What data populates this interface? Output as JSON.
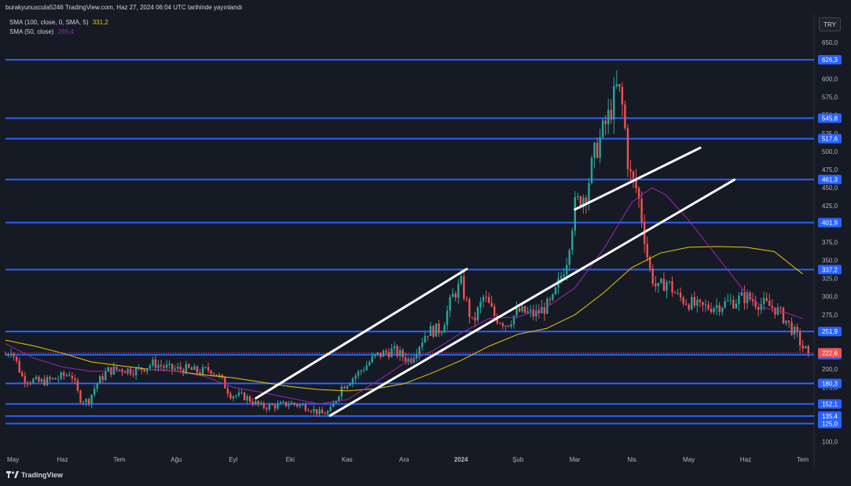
{
  "header": {
    "published_by": "burakyunuscula5246 TradingView.com, Haz 27, 2024 06:04 UTC tarihinde yayınlandı",
    "indicators": [
      {
        "label": "SMA (100, close, 0, SMA, 5)",
        "value": "331,2",
        "color": "#f0c800"
      },
      {
        "label": "SMA (50, close)",
        "value": "269,4",
        "color": "#9c27b0"
      }
    ],
    "currency": "TRY"
  },
  "footer": {
    "brand": "TradingView"
  },
  "chart_data": {
    "type": "candlestick",
    "y_axis": {
      "ticks": [
        {
          "v": 650,
          "label": "650,0"
        },
        {
          "v": 625,
          "label": "625,0"
        },
        {
          "v": 600,
          "label": "600,0"
        },
        {
          "v": 575,
          "label": "575,0"
        },
        {
          "v": 550,
          "label": "550,0"
        },
        {
          "v": 525,
          "label": "525,0"
        },
        {
          "v": 500,
          "label": "500,0"
        },
        {
          "v": 475,
          "label": "475,0"
        },
        {
          "v": 450,
          "label": "450,0"
        },
        {
          "v": 425,
          "label": "425,0"
        },
        {
          "v": 400,
          "label": "400,0"
        },
        {
          "v": 375,
          "label": "375,0"
        },
        {
          "v": 350,
          "label": "350,0"
        },
        {
          "v": 325,
          "label": "325,0"
        },
        {
          "v": 300,
          "label": "300,0"
        },
        {
          "v": 275,
          "label": "275,0"
        },
        {
          "v": 250,
          "label": "250,0"
        },
        {
          "v": 225,
          "label": "225,0"
        },
        {
          "v": 200,
          "label": "200,0"
        },
        {
          "v": 175,
          "label": "175,0"
        },
        {
          "v": 150,
          "label": "150,0"
        },
        {
          "v": 125,
          "label": "125,0"
        },
        {
          "v": 100,
          "label": "100,0"
        }
      ],
      "range": [
        92,
        660
      ]
    },
    "x_axis": {
      "labels": [
        "May",
        "Haz",
        "Tem",
        "Ağu",
        "Eyl",
        "Eki",
        "Kas",
        "Ara",
        "2024",
        "Şub",
        "Mar",
        "Nis",
        "May",
        "Haz",
        "Tem"
      ],
      "range_months": [
        0,
        14.2
      ]
    },
    "horizontal_levels": [
      {
        "value": 626.3,
        "label": "626,3"
      },
      {
        "value": 545.8,
        "label": "545,8"
      },
      {
        "value": 517.6,
        "label": "517,6"
      },
      {
        "value": 461.3,
        "label": "461,3"
      },
      {
        "value": 401.9,
        "label": "401,9"
      },
      {
        "value": 337.2,
        "label": "337,2"
      },
      {
        "value": 251.9,
        "label": "251,9"
      },
      {
        "value": 219.9,
        "label": "219,9"
      },
      {
        "value": 180.3,
        "label": "180,3"
      },
      {
        "value": 152.1,
        "label": "152,1"
      },
      {
        "value": 135.4,
        "label": "135,4"
      },
      {
        "value": 125.0,
        "label": "125,0"
      }
    ],
    "last_price": {
      "value": 222.6,
      "label": "222,6"
    },
    "price_path": [
      [
        0.0,
        220
      ],
      [
        0.1,
        228
      ],
      [
        0.3,
        188
      ],
      [
        0.6,
        182
      ],
      [
        0.9,
        187
      ],
      [
        1.15,
        195
      ],
      [
        1.3,
        160
      ],
      [
        1.45,
        155
      ],
      [
        1.6,
        180
      ],
      [
        1.8,
        198
      ],
      [
        2.0,
        200
      ],
      [
        2.3,
        198
      ],
      [
        2.6,
        208
      ],
      [
        2.9,
        200
      ],
      [
        3.2,
        200
      ],
      [
        3.4,
        196
      ],
      [
        3.6,
        200
      ],
      [
        3.75,
        190
      ],
      [
        3.95,
        165
      ],
      [
        4.2,
        162
      ],
      [
        4.5,
        148
      ],
      [
        4.8,
        150
      ],
      [
        5.0,
        153
      ],
      [
        5.3,
        148
      ],
      [
        5.55,
        138
      ],
      [
        5.7,
        142
      ],
      [
        5.9,
        175
      ],
      [
        6.2,
        195
      ],
      [
        6.5,
        218
      ],
      [
        6.8,
        226
      ],
      [
        7.1,
        212
      ],
      [
        7.4,
        252
      ],
      [
        7.65,
        255
      ],
      [
        7.85,
        300
      ],
      [
        8.0,
        318
      ],
      [
        8.2,
        262
      ],
      [
        8.4,
        300
      ],
      [
        8.6,
        272
      ],
      [
        8.8,
        262
      ],
      [
        9.0,
        280
      ],
      [
        9.3,
        275
      ],
      [
        9.6,
        292
      ],
      [
        9.85,
        350
      ],
      [
        10.0,
        425
      ],
      [
        10.2,
        445
      ],
      [
        10.35,
        498
      ],
      [
        10.6,
        550
      ],
      [
        10.75,
        590
      ],
      [
        10.85,
        555
      ],
      [
        10.95,
        470
      ],
      [
        11.1,
        445
      ],
      [
        11.2,
        395
      ],
      [
        11.3,
        340
      ],
      [
        11.45,
        308
      ],
      [
        11.6,
        322
      ],
      [
        11.8,
        300
      ],
      [
        12.0,
        292
      ],
      [
        12.2,
        284
      ],
      [
        12.5,
        288
      ],
      [
        12.8,
        294
      ],
      [
        13.0,
        300
      ],
      [
        13.2,
        292
      ],
      [
        13.5,
        285
      ],
      [
        13.7,
        268
      ],
      [
        13.9,
        245
      ],
      [
        14.0,
        230
      ],
      [
        14.1,
        222.6
      ]
    ],
    "sma_100": [
      [
        0.0,
        240
      ],
      [
        0.5,
        232
      ],
      [
        1.0,
        222
      ],
      [
        1.5,
        210
      ],
      [
        2.0,
        205
      ],
      [
        2.5,
        200
      ],
      [
        3.0,
        197
      ],
      [
        3.5,
        192
      ],
      [
        4.0,
        188
      ],
      [
        4.5,
        182
      ],
      [
        5.0,
        176
      ],
      [
        5.5,
        172
      ],
      [
        6.0,
        170
      ],
      [
        6.5,
        173
      ],
      [
        7.0,
        180
      ],
      [
        7.5,
        195
      ],
      [
        8.0,
        212
      ],
      [
        8.5,
        232
      ],
      [
        9.0,
        248
      ],
      [
        9.5,
        256
      ],
      [
        10.0,
        275
      ],
      [
        10.5,
        305
      ],
      [
        11.0,
        340
      ],
      [
        11.5,
        360
      ],
      [
        12.0,
        368
      ],
      [
        12.5,
        369
      ],
      [
        13.0,
        368
      ],
      [
        13.5,
        362
      ],
      [
        14.0,
        331.2
      ]
    ],
    "sma_50": [
      [
        0.0,
        235
      ],
      [
        0.5,
        215
      ],
      [
        1.0,
        203
      ],
      [
        1.5,
        197
      ],
      [
        2.0,
        197
      ],
      [
        2.5,
        200
      ],
      [
        3.0,
        197
      ],
      [
        3.5,
        190
      ],
      [
        4.0,
        175
      ],
      [
        4.5,
        168
      ],
      [
        5.0,
        160
      ],
      [
        5.5,
        152
      ],
      [
        6.0,
        158
      ],
      [
        6.5,
        182
      ],
      [
        7.0,
        208
      ],
      [
        7.5,
        225
      ],
      [
        8.0,
        250
      ],
      [
        8.5,
        270
      ],
      [
        9.0,
        272
      ],
      [
        9.5,
        285
      ],
      [
        10.0,
        312
      ],
      [
        10.5,
        365
      ],
      [
        11.0,
        430
      ],
      [
        11.35,
        450
      ],
      [
        11.6,
        440
      ],
      [
        12.0,
        405
      ],
      [
        12.5,
        355
      ],
      [
        13.0,
        305
      ],
      [
        13.3,
        285
      ],
      [
        13.7,
        278
      ],
      [
        14.0,
        269.4
      ]
    ],
    "trendlines": [
      {
        "from": [
          4.4,
          160
        ],
        "to": [
          8.1,
          338
        ]
      },
      {
        "from": [
          5.7,
          136
        ],
        "to": [
          12.8,
          461
        ]
      },
      {
        "from": [
          10.0,
          420
        ],
        "to": [
          12.2,
          505
        ]
      }
    ]
  }
}
